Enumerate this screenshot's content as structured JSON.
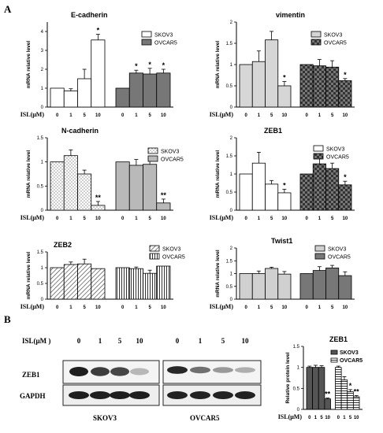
{
  "panel_labels": {
    "a": "A",
    "b": "B"
  },
  "x_axis_prefix": "ISL(μM)",
  "y_axis_label": "mRNA relative level",
  "x_ticks": [
    "0",
    "1",
    "5",
    "10"
  ],
  "legend": {
    "skov3": "SKOV3",
    "ovcar5": "OVCAR5"
  },
  "chart_data": [
    {
      "type": "bar",
      "title": "E-cadherin",
      "ylabel": "mRNA relative level",
      "xlabel": "ISL(μM)",
      "ylim": [
        0,
        4.5
      ],
      "categories": [
        "0",
        "1",
        "5",
        "10"
      ],
      "series": [
        {
          "name": "SKOV3",
          "values": [
            1.0,
            0.85,
            1.5,
            3.55
          ],
          "errors": [
            0,
            0.12,
            0.5,
            0.3
          ],
          "stars": [
            "",
            "",
            "",
            "*"
          ]
        },
        {
          "name": "OVCAR5",
          "values": [
            1.0,
            1.8,
            1.75,
            1.8
          ],
          "errors": [
            0,
            0.15,
            0.3,
            0.2
          ],
          "stars": [
            "",
            "*",
            "*",
            "*"
          ]
        }
      ]
    },
    {
      "type": "bar",
      "title": "vimentin",
      "ylabel": "mRNA relative level",
      "xlabel": "ISL(μM)",
      "ylim": [
        0,
        2
      ],
      "categories": [
        "0",
        "1",
        "5",
        "10"
      ],
      "series": [
        {
          "name": "SKOV3",
          "values": [
            1.0,
            1.07,
            1.58,
            0.5
          ],
          "errors": [
            0,
            0.25,
            0.2,
            0.1
          ],
          "stars": [
            "",
            "",
            "",
            "*"
          ]
        },
        {
          "name": "OVCAR5",
          "values": [
            1.0,
            0.97,
            0.94,
            0.62
          ],
          "errors": [
            0,
            0.15,
            0.15,
            0.05
          ],
          "stars": [
            "",
            "",
            "",
            "*"
          ]
        }
      ]
    },
    {
      "type": "bar",
      "title": "N-cadherin",
      "ylabel": "mRNA relative level",
      "xlabel": "ISL(μM)",
      "ylim": [
        0,
        1.5
      ],
      "categories": [
        "0",
        "1",
        "5",
        "10"
      ],
      "series": [
        {
          "name": "SKOV3",
          "values": [
            1.0,
            1.13,
            0.75,
            0.1
          ],
          "errors": [
            0,
            0.12,
            0.08,
            0.08
          ],
          "stars": [
            "",
            "",
            "",
            "**"
          ]
        },
        {
          "name": "OVCAR5",
          "values": [
            1.0,
            0.93,
            0.95,
            0.15
          ],
          "errors": [
            0,
            0.12,
            0.12,
            0.08
          ],
          "stars": [
            "",
            "",
            "",
            "**"
          ]
        }
      ]
    },
    {
      "type": "bar",
      "title": "ZEB1",
      "ylabel": "mRNA relative level",
      "xlabel": "ISL(μM)",
      "ylim": [
        0,
        2
      ],
      "categories": [
        "0",
        "1",
        "5",
        "10"
      ],
      "series": [
        {
          "name": "SKOV3",
          "values": [
            1.0,
            1.3,
            0.72,
            0.48
          ],
          "errors": [
            0,
            0.3,
            0.1,
            0.1
          ],
          "stars": [
            "",
            "",
            "",
            "*"
          ]
        },
        {
          "name": "OVCAR5",
          "values": [
            1.0,
            1.28,
            1.15,
            0.7
          ],
          "errors": [
            0,
            0.25,
            0.15,
            0.1
          ],
          "stars": [
            "",
            "",
            "",
            "*"
          ]
        }
      ]
    },
    {
      "type": "bar",
      "title": "ZEB2",
      "ylabel": "mRNA relative level",
      "xlabel": "ISL(μM)",
      "ylim": [
        0,
        1.5
      ],
      "categories": [
        "0",
        "1",
        "5",
        "10"
      ],
      "series": [
        {
          "name": "SKOV3",
          "values": [
            1.0,
            1.1,
            1.12,
            0.97
          ],
          "errors": [
            0,
            0.08,
            0.15,
            0
          ],
          "stars": [
            "",
            "",
            "",
            ""
          ]
        },
        {
          "name": "OVCAR5",
          "values": [
            1.0,
            0.97,
            0.82,
            1.05
          ],
          "errors": [
            0,
            0.05,
            0.1,
            0
          ],
          "stars": [
            "",
            "",
            "",
            ""
          ]
        }
      ]
    },
    {
      "type": "bar",
      "title": "Twist1",
      "ylabel": "mRNA relative level",
      "xlabel": "ISL(μM)",
      "ylim": [
        0,
        2
      ],
      "categories": [
        "0",
        "1",
        "5",
        "10"
      ],
      "series": [
        {
          "name": "SKOV3",
          "values": [
            1.0,
            1.0,
            1.2,
            0.98
          ],
          "errors": [
            0,
            0.1,
            0.05,
            0.1
          ],
          "stars": [
            "",
            "",
            "",
            ""
          ]
        },
        {
          "name": "OVCAR5",
          "values": [
            1.0,
            1.12,
            1.22,
            0.92
          ],
          "errors": [
            0,
            0.15,
            0.1,
            0.15
          ],
          "stars": [
            "",
            "",
            "",
            ""
          ]
        }
      ]
    },
    {
      "type": "bar",
      "title": "ZEB1",
      "ylabel": "Relative protein level",
      "xlabel": "ISL(μM)",
      "ylim": [
        0,
        1.5
      ],
      "categories": [
        "0",
        "1",
        "5",
        "10"
      ],
      "series": [
        {
          "name": "SKOV3",
          "values": [
            1.0,
            1.0,
            1.0,
            0.25
          ],
          "errors": [
            0.03,
            0.05,
            0.04,
            0.02
          ],
          "stars": [
            "",
            "",
            "",
            "**"
          ]
        },
        {
          "name": "OVCAR5",
          "values": [
            1.0,
            0.7,
            0.42,
            0.3
          ],
          "errors": [
            0.03,
            0.08,
            0.05,
            0.03
          ],
          "stars": [
            "",
            "",
            "*",
            "**"
          ]
        }
      ]
    }
  ],
  "western_blot": {
    "header": "ISL(μM )",
    "doses": [
      "0",
      "1",
      "5",
      "10"
    ],
    "rows": [
      "ZEB1",
      "GAPDH"
    ],
    "groups": [
      "SKOV3",
      "OVCAR5"
    ],
    "zeb1_intensity": {
      "SKOV3": [
        1.0,
        0.85,
        0.8,
        0.25
      ],
      "OVCAR5": [
        0.95,
        0.6,
        0.4,
        0.3
      ]
    }
  }
}
